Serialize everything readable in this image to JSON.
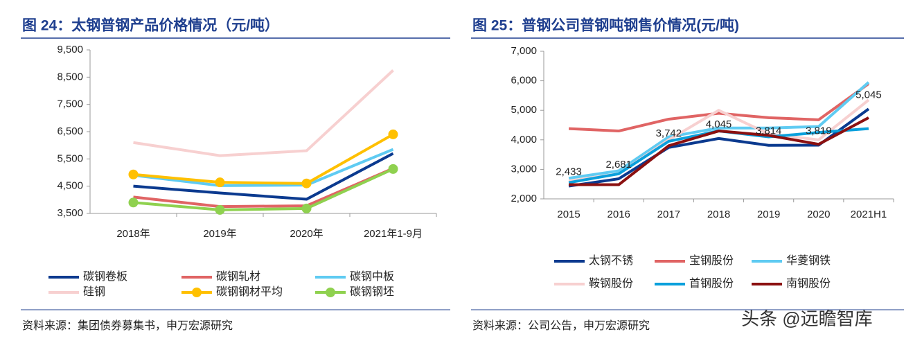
{
  "chart_data": [
    {
      "type": "line",
      "title": "图 24：太钢普钢产品价格情况（元/吨）",
      "source": "资料来源：集团债券募集书，申万宏源研究",
      "categories": [
        "2018年",
        "2019年",
        "2020年",
        "2021年1-9月"
      ],
      "ylim": [
        3500,
        9500
      ],
      "yticks": [
        {
          "value": 3500,
          "label": "3,500"
        },
        {
          "value": 4500,
          "label": "4,500"
        },
        {
          "value": 5500,
          "label": "5,500"
        },
        {
          "value": 6500,
          "label": "6,500"
        },
        {
          "value": 7500,
          "label": "7,500"
        },
        {
          "value": 8500,
          "label": "8,500"
        },
        {
          "value": 9500,
          "label": "9,500"
        }
      ],
      "grid": false,
      "legend": "bottom",
      "series": [
        {
          "name": "碳钢卷板",
          "color": "#0b3a8f",
          "values": [
            4500,
            4250,
            4020,
            5700
          ]
        },
        {
          "name": "碳钢轧材",
          "color": "#e06464",
          "values": [
            4100,
            3750,
            3780,
            5150
          ]
        },
        {
          "name": "碳钢中板",
          "color": "#5fcbf2",
          "values": [
            4900,
            4520,
            4540,
            5850
          ]
        },
        {
          "name": "硅钢",
          "color": "#f7d0d0",
          "values": [
            6100,
            5620,
            5800,
            8750
          ]
        },
        {
          "name": "碳钢钢材平均",
          "color": "#ffc000",
          "marker": "circle",
          "values": [
            4930,
            4640,
            4600,
            6400
          ]
        },
        {
          "name": "碳钢钢坯",
          "color": "#8fd14f",
          "marker": "circle",
          "values": [
            3900,
            3630,
            3680,
            5130
          ]
        }
      ]
    },
    {
      "type": "line",
      "title": "图 25：普钢公司普钢吨钢售价情况(元/吨)",
      "source": "资料来源：公司公告，申万宏源研究",
      "categories": [
        "2015",
        "2016",
        "2017",
        "2018",
        "2019",
        "2020",
        "2021H1"
      ],
      "ylim": [
        2000,
        7000
      ],
      "yticks": [
        {
          "value": 2000,
          "label": "2,000"
        },
        {
          "value": 3000,
          "label": "3,000"
        },
        {
          "value": 4000,
          "label": "4,000"
        },
        {
          "value": 5000,
          "label": "5,000"
        },
        {
          "value": 6000,
          "label": "6,000"
        },
        {
          "value": 7000,
          "label": "7,000"
        }
      ],
      "grid": false,
      "legend": "bottom",
      "series": [
        {
          "name": "太钢不锈",
          "color": "#0b3a8f",
          "values": [
            2433,
            2681,
            3742,
            4045,
            3814,
            3819,
            5045
          ],
          "value_labels": [
            "2,433",
            "2,681",
            "3,742",
            "4,045",
            "3,814",
            "3,819",
            "5,045"
          ]
        },
        {
          "name": "宝钢股份",
          "color": "#e06464",
          "values": [
            4380,
            4300,
            4700,
            4900,
            4750,
            4680,
            5900
          ]
        },
        {
          "name": "华菱钢铁",
          "color": "#5fcbf2",
          "values": [
            2700,
            2950,
            4100,
            4400,
            4400,
            4450,
            5950
          ]
        },
        {
          "name": "鞍钢股份",
          "color": "#f7d0d0",
          "values": [
            2600,
            2850,
            4000,
            5000,
            4200,
            4000,
            5350
          ]
        },
        {
          "name": "首钢股份",
          "color": "#0aa0dc",
          "values": [
            2550,
            2850,
            3950,
            4300,
            4100,
            4250,
            4380
          ]
        },
        {
          "name": "南钢股份",
          "color": "#8b1010",
          "values": [
            2480,
            2480,
            3800,
            4300,
            4150,
            3850,
            4750
          ]
        }
      ]
    }
  ],
  "watermark": "头条 @远瞻智库"
}
